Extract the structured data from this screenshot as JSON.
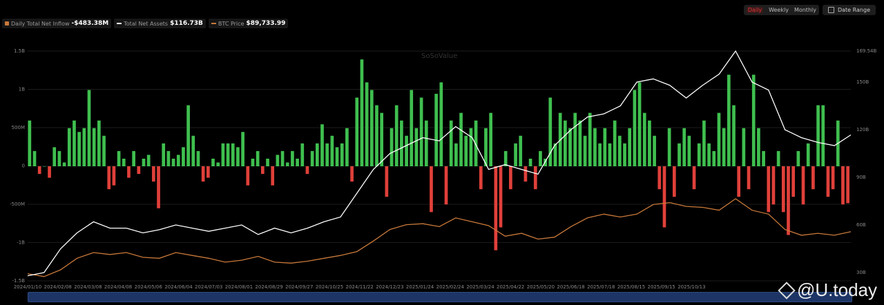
{
  "toolbar": {
    "daily": "Daily",
    "weekly": "Weekly",
    "monthly": "Monthly",
    "date_range": "Date Range",
    "active": "Daily"
  },
  "legend": {
    "inflow_label": "Daily Total Net Inflow",
    "inflow_value": "-$483.38M",
    "assets_label": "Total Net Assets",
    "assets_value": "$116.73B",
    "btc_label": "BTC Price",
    "btc_value": "$89,733.99"
  },
  "watermark": "SoSoValue",
  "logo": "@U.today",
  "colors": {
    "inflow_positive": "#3fbf4f",
    "inflow_negative": "#e0403a",
    "net_assets": "#ffffff",
    "btc_price": "#c9793a",
    "navigator": "#1d3566"
  },
  "chart_data": {
    "type": "bar+line",
    "left_axis": {
      "ticks": [
        "1.5B",
        "1B",
        "500M",
        "0",
        "-500M",
        "-1B",
        "-1.5B"
      ],
      "range_millions": [
        -1500,
        1500
      ]
    },
    "right_axis": {
      "ticks": [
        "169.54B",
        "150B",
        "120B",
        "90B",
        "60B",
        "30B"
      ],
      "range_billions": [
        30,
        169.54
      ]
    },
    "x_ticks": [
      "2024/01/10",
      "2024/02/08",
      "2024/03/08",
      "2024/04/08",
      "2024/05/06",
      "2024/06/04",
      "2024/07/03",
      "2024/08/01",
      "2024/08/29",
      "2024/09/27",
      "2024/10/25",
      "2024/11/22",
      "2024/12/23",
      "2025/01/24",
      "2025/02/24",
      "2025/03/24",
      "2025/04/22",
      "2025/05/20",
      "2025/06/18",
      "2025/07/18",
      "2025/08/15",
      "2025/09/15",
      "2025/10/13"
    ],
    "grid": true,
    "series": [
      {
        "name": "Daily Total Net Inflow",
        "type": "bar",
        "unit": "USD millions",
        "values": [
          600,
          200,
          -100,
          0,
          -150,
          250,
          200,
          50,
          500,
          600,
          450,
          500,
          1000,
          500,
          600,
          400,
          -300,
          -250,
          200,
          100,
          -150,
          200,
          -100,
          100,
          150,
          -200,
          -550,
          300,
          200,
          100,
          150,
          250,
          800,
          400,
          200,
          -200,
          -150,
          100,
          50,
          300,
          300,
          300,
          250,
          450,
          -250,
          100,
          200,
          -100,
          100,
          -250,
          150,
          200,
          50,
          200,
          100,
          300,
          -100,
          200,
          300,
          550,
          300,
          400,
          250,
          300,
          500,
          -200,
          900,
          1400,
          1100,
          1000,
          800,
          700,
          -400,
          500,
          800,
          600,
          400,
          1000,
          500,
          900,
          600,
          -600,
          950,
          1100,
          -500,
          600,
          300,
          700,
          400,
          500,
          600,
          -300,
          500,
          700,
          -1100,
          -800,
          200,
          -300,
          300,
          400,
          -200,
          100,
          -300,
          200,
          100,
          900,
          300,
          700,
          600,
          500,
          700,
          600,
          400,
          700,
          500,
          300,
          500,
          300,
          600,
          400,
          300,
          500,
          1000,
          1100,
          700,
          600,
          400,
          -300,
          -800,
          500,
          -400,
          300,
          500,
          400,
          -300,
          300,
          600,
          300,
          200,
          700,
          500,
          1200,
          800,
          -400,
          500,
          -300,
          1200,
          500,
          200,
          -600,
          -500,
          200,
          -600,
          -900,
          -400,
          200,
          -500,
          300,
          -300,
          800,
          800,
          -400,
          -300,
          600,
          -500,
          -483.38
        ]
      },
      {
        "name": "Total Net Assets",
        "type": "line",
        "unit": "USD billions",
        "values": [
          28,
          30,
          45,
          55,
          62,
          58,
          58,
          55,
          57,
          60,
          58,
          56,
          58,
          60,
          54,
          58,
          55,
          58,
          62,
          65,
          80,
          95,
          105,
          110,
          115,
          113,
          122,
          115,
          95,
          98,
          95,
          92,
          110,
          120,
          128,
          130,
          135,
          150,
          152,
          148,
          140,
          148,
          155,
          169.54,
          150,
          145,
          120,
          115,
          112,
          110,
          116.73
        ]
      },
      {
        "name": "BTC Price",
        "type": "line",
        "unit": "USD",
        "values": [
          46000,
          43000,
          50000,
          62000,
          68000,
          66000,
          68000,
          63000,
          62000,
          68000,
          65000,
          62000,
          58000,
          60000,
          64000,
          58000,
          57000,
          59000,
          62000,
          65000,
          69000,
          80000,
          92000,
          97000,
          98000,
          95000,
          104000,
          100000,
          96000,
          85000,
          88000,
          82000,
          84000,
          95000,
          104000,
          108000,
          105000,
          108000,
          118000,
          120000,
          116000,
          115000,
          112000,
          124000,
          112000,
          108000,
          92000,
          86000,
          88000,
          86000,
          89733.99
        ]
      }
    ]
  }
}
